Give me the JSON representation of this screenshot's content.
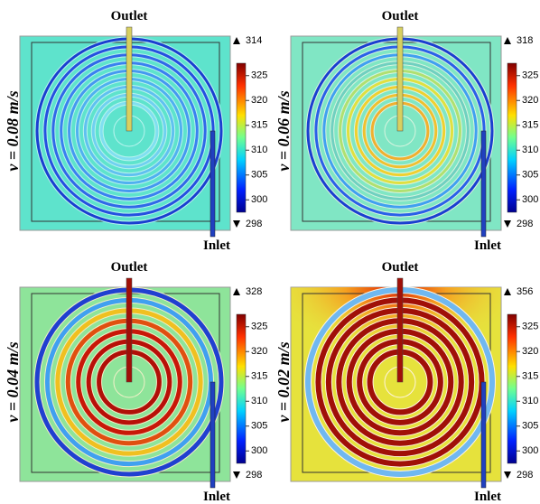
{
  "panels": [
    {
      "label": "v = 0.08 m/s",
      "outlet": "Outlet",
      "inlet": "Inlet",
      "max": 314,
      "min": 298,
      "ticks": [
        325,
        320,
        315,
        310,
        305,
        300
      ]
    },
    {
      "label": "v = 0.06 m/s",
      "outlet": "Outlet",
      "inlet": "Inlet",
      "max": 318,
      "min": 298,
      "ticks": [
        325,
        320,
        315,
        310,
        305,
        300
      ]
    },
    {
      "label": "v = 0.04 m/s",
      "outlet": "Outlet",
      "inlet": "Inlet",
      "max": 328,
      "min": 298,
      "ticks": [
        325,
        320,
        315,
        310,
        305,
        300
      ]
    },
    {
      "label": "v = 0.02 m/s",
      "outlet": "Outlet",
      "inlet": "Inlet",
      "max": 356,
      "min": 298,
      "ticks": [
        325,
        320,
        315,
        310,
        305,
        300
      ]
    }
  ]
}
